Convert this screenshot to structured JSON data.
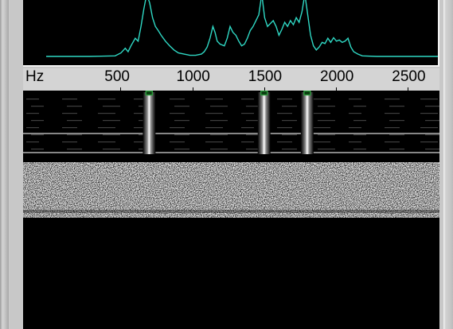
{
  "colors": {
    "spectrum_trace": "#2fd8c4",
    "panel_background": "#000000",
    "scale_background": "#d4d4d4",
    "marker": "#2a9a3a",
    "carrier": "#ffffff"
  },
  "scale": {
    "unit": "Hz",
    "ticks": [
      {
        "label": "500",
        "hz": 500
      },
      {
        "label": "1000",
        "hz": 1000
      },
      {
        "label": "1500",
        "hz": 1500
      },
      {
        "label": "2000",
        "hz": 2000
      },
      {
        "label": "2500",
        "hz": 2500
      }
    ]
  },
  "spectrum": {
    "hz_range": [
      0,
      2900
    ],
    "level_range": [
      0,
      100
    ],
    "trace": [
      [
        0,
        4
      ],
      [
        300,
        4
      ],
      [
        480,
        5
      ],
      [
        520,
        10
      ],
      [
        550,
        18
      ],
      [
        570,
        12
      ],
      [
        590,
        22
      ],
      [
        620,
        35
      ],
      [
        640,
        30
      ],
      [
        660,
        55
      ],
      [
        680,
        85
      ],
      [
        700,
        110
      ],
      [
        720,
        95
      ],
      [
        740,
        70
      ],
      [
        760,
        55
      ],
      [
        780,
        48
      ],
      [
        800,
        40
      ],
      [
        830,
        30
      ],
      [
        860,
        22
      ],
      [
        890,
        15
      ],
      [
        920,
        10
      ],
      [
        960,
        8
      ],
      [
        1000,
        6
      ],
      [
        1040,
        6
      ],
      [
        1080,
        8
      ],
      [
        1100,
        12
      ],
      [
        1120,
        20
      ],
      [
        1140,
        35
      ],
      [
        1160,
        55
      ],
      [
        1175,
        45
      ],
      [
        1190,
        30
      ],
      [
        1210,
        25
      ],
      [
        1240,
        22
      ],
      [
        1260,
        35
      ],
      [
        1280,
        55
      ],
      [
        1300,
        45
      ],
      [
        1320,
        40
      ],
      [
        1340,
        30
      ],
      [
        1360,
        22
      ],
      [
        1380,
        25
      ],
      [
        1400,
        35
      ],
      [
        1420,
        48
      ],
      [
        1440,
        55
      ],
      [
        1460,
        65
      ],
      [
        1480,
        75
      ],
      [
        1500,
        110
      ],
      [
        1520,
        70
      ],
      [
        1540,
        55
      ],
      [
        1560,
        60
      ],
      [
        1580,
        65
      ],
      [
        1600,
        55
      ],
      [
        1620,
        40
      ],
      [
        1640,
        50
      ],
      [
        1660,
        62
      ],
      [
        1680,
        55
      ],
      [
        1700,
        65
      ],
      [
        1720,
        58
      ],
      [
        1740,
        70
      ],
      [
        1760,
        62
      ],
      [
        1780,
        80
      ],
      [
        1800,
        110
      ],
      [
        1820,
        75
      ],
      [
        1840,
        40
      ],
      [
        1860,
        22
      ],
      [
        1880,
        15
      ],
      [
        1900,
        20
      ],
      [
        1920,
        28
      ],
      [
        1940,
        26
      ],
      [
        1960,
        35
      ],
      [
        1980,
        28
      ],
      [
        2000,
        36
      ],
      [
        2020,
        30
      ],
      [
        2040,
        32
      ],
      [
        2060,
        28
      ],
      [
        2080,
        30
      ],
      [
        2100,
        35
      ],
      [
        2120,
        20
      ],
      [
        2140,
        12
      ],
      [
        2170,
        8
      ],
      [
        2200,
        5
      ],
      [
        2300,
        4
      ],
      [
        2500,
        4
      ],
      [
        2700,
        4
      ],
      [
        2900,
        4
      ]
    ]
  },
  "waterfall": {
    "carriers_hz": [
      700,
      1500,
      1800
    ],
    "marker_hz": [
      700,
      1500,
      1800
    ]
  }
}
